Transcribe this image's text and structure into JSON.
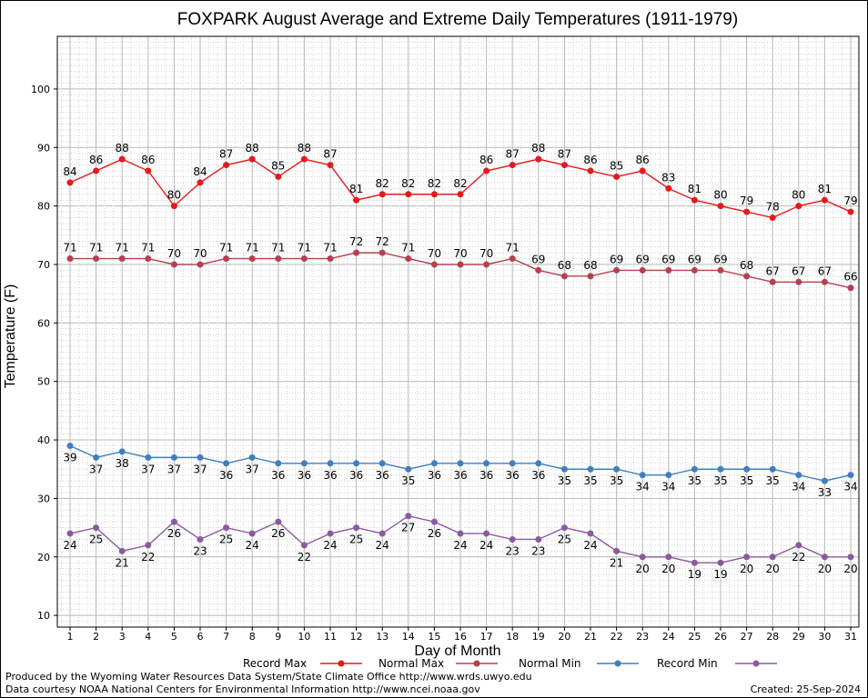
{
  "chart_data": {
    "type": "line",
    "title": "FOXPARK August Average and Extreme Daily Temperatures (1911-1979)",
    "xlabel": "Day of Month",
    "ylabel": "Temperature (F)",
    "ylim": [
      8,
      109
    ],
    "yticks": [
      10,
      20,
      30,
      40,
      50,
      60,
      70,
      80,
      90,
      100
    ],
    "x": [
      1,
      2,
      3,
      4,
      5,
      6,
      7,
      8,
      9,
      10,
      11,
      12,
      13,
      14,
      15,
      16,
      17,
      18,
      19,
      20,
      21,
      22,
      23,
      24,
      25,
      26,
      27,
      28,
      29,
      30,
      31
    ],
    "grid": true,
    "legend_position": "bottom",
    "series": [
      {
        "name": "Record Max",
        "color": "#e41a1c",
        "label_side": "above",
        "values": [
          84,
          86,
          88,
          86,
          80,
          84,
          87,
          88,
          85,
          88,
          87,
          81,
          82,
          82,
          82,
          82,
          86,
          87,
          88,
          87,
          86,
          85,
          86,
          83,
          81,
          80,
          79,
          78,
          80,
          81,
          79
        ]
      },
      {
        "name": "Normal Max",
        "color": "#b5404e",
        "label_side": "above",
        "values": [
          71,
          71,
          71,
          71,
          70,
          70,
          71,
          71,
          71,
          71,
          71,
          72,
          72,
          71,
          70,
          70,
          70,
          71,
          69,
          68,
          68,
          69,
          69,
          69,
          69,
          69,
          68,
          67,
          67,
          67,
          66
        ]
      },
      {
        "name": "Normal Min",
        "color": "#3f7fbf",
        "label_side": "below",
        "values": [
          39,
          37,
          38,
          37,
          37,
          37,
          36,
          37,
          36,
          36,
          36,
          36,
          36,
          35,
          36,
          36,
          36,
          36,
          36,
          35,
          35,
          35,
          34,
          34,
          35,
          35,
          35,
          35,
          34,
          33,
          34
        ]
      },
      {
        "name": "Record Min",
        "color": "#8a5a9e",
        "label_side": "below",
        "values": [
          24,
          25,
          21,
          22,
          26,
          23,
          25,
          24,
          26,
          22,
          24,
          25,
          24,
          27,
          26,
          24,
          24,
          23,
          23,
          25,
          24,
          21,
          20,
          20,
          19,
          19,
          20,
          20,
          22,
          20,
          20
        ]
      }
    ]
  },
  "footer": {
    "produced_by": "Produced by the Wyoming Water Resources Data System/State Climate Office http://www.wrds.uwyo.edu",
    "courtesy": "Data courtesy NOAA National Centers for Environmental Information http://www.ncei.noaa.gov",
    "created": "Created:  25-Sep-2024"
  }
}
